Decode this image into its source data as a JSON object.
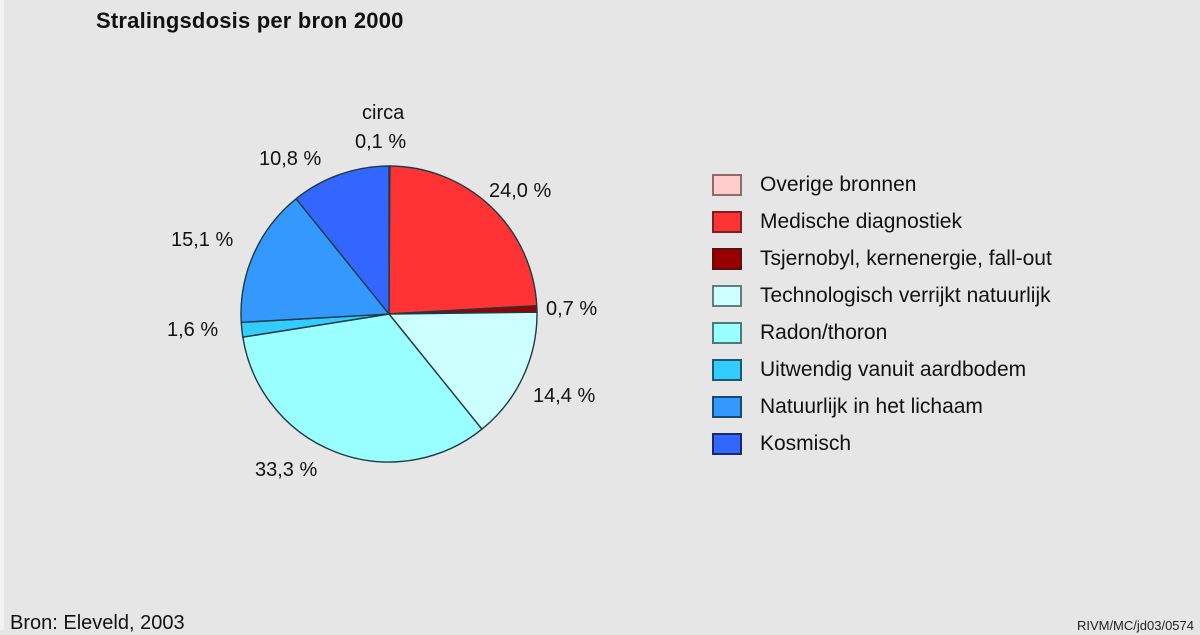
{
  "chart_data": {
    "type": "pie",
    "title": "Stralingsdosis per bron 2000",
    "start_angle": "12 o'clock, clockwise",
    "unit": "%",
    "categories": [
      "Overige bronnen",
      "Medische diagnostiek",
      "Tsjernobyl, kernenergie, fall-out",
      "Technologisch verrijkt natuurlijk",
      "Radon/thoron",
      "Uitwendig vanuit aardbodem",
      "Natuurlijk in het lichaam",
      "Kosmisch"
    ],
    "values": [
      0.1,
      24.0,
      0.7,
      14.4,
      33.3,
      1.6,
      15.1,
      10.8
    ],
    "value_labels": [
      "circa 0,1 %",
      "24,0 %",
      "0,7 %",
      "14,4 %",
      "33,3 %",
      "1,6 %",
      "15,1 %",
      "10,8 %"
    ],
    "colors": [
      "#ffcccc",
      "#ff3333",
      "#990000",
      "#ccffff",
      "#99ffff",
      "#33ccff",
      "#3399ff",
      "#3366ff"
    ],
    "legend_position": "right",
    "source": "Bron: Eleveld, 2003"
  },
  "title": "Stralingsdosis per bron 2000",
  "labels": {
    "overige_line1": "circa",
    "overige_line2": "0,1 %",
    "medische": "24,0 %",
    "tsjernobyl": "0,7 %",
    "technologisch": "14,4 %",
    "radon": "33,3 %",
    "uitwendig": "1,6 %",
    "natuurlijk": "15,1 %",
    "kosmisch": "10,8 %"
  },
  "legend": [
    {
      "label": "Overige bronnen",
      "color": "#ffcccc"
    },
    {
      "label": "Medische diagnostiek",
      "color": "#ff3333"
    },
    {
      "label": "Tsjernobyl, kernenergie, fall-out",
      "color": "#990000"
    },
    {
      "label": "Technologisch verrijkt natuurlijk",
      "color": "#ccffff"
    },
    {
      "label": "Radon/thoron",
      "color": "#99ffff"
    },
    {
      "label": "Uitwendig vanuit aardbodem",
      "color": "#33ccff"
    },
    {
      "label": "Natuurlijk in het lichaam",
      "color": "#3399ff"
    },
    {
      "label": "Kosmisch",
      "color": "#3366ff"
    }
  ],
  "footer": {
    "source": "Bron: Eleveld, 2003",
    "code": "RIVM/MC/jd03/0574"
  }
}
